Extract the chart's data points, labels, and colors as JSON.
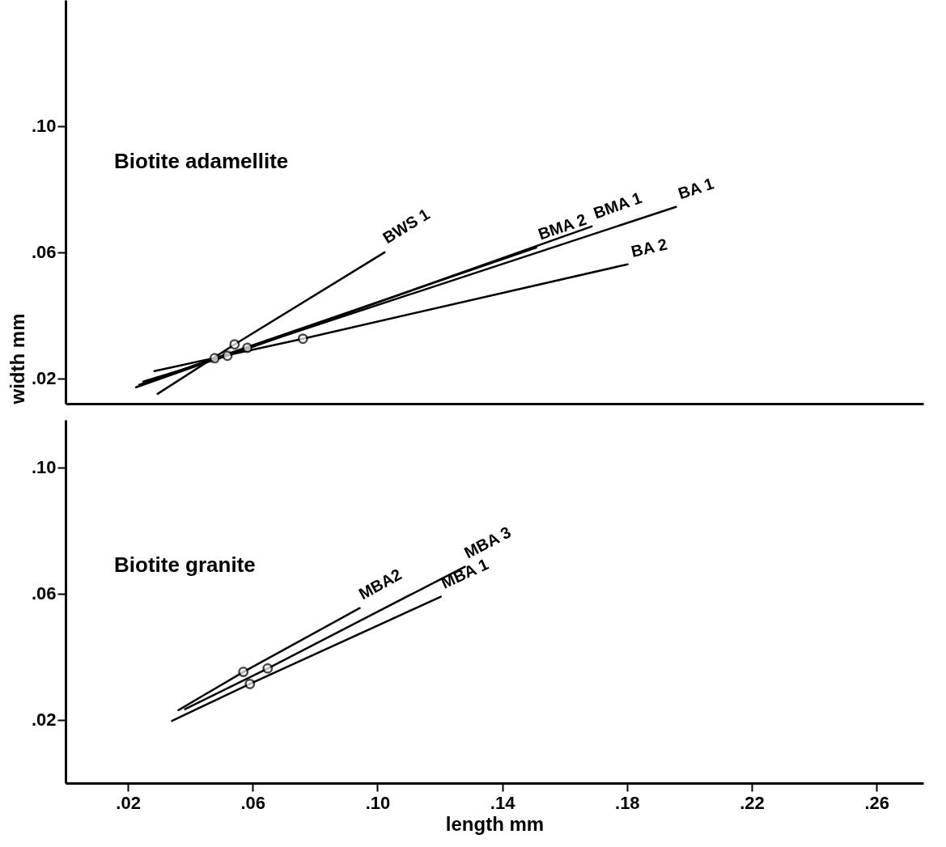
{
  "chart_data": [
    {
      "type": "line",
      "annotations": [
        "Biotite adamellite"
      ],
      "ylabel": "width mm",
      "xlim": [
        0,
        0.275
      ],
      "ylim": [
        0.012,
        0.14
      ],
      "yticks": [
        {
          "value": 0.02,
          "label": ".02"
        },
        {
          "value": 0.06,
          "label": ".06"
        },
        {
          "value": 0.1,
          "label": ".10"
        }
      ],
      "tick_labels": "y",
      "marker": "none",
      "grid": false,
      "series": [
        {
          "name": "BWS 1",
          "color": "#000000",
          "x": [
            0.0295,
            0.0542,
            0.1023
          ],
          "values": [
            0.0151,
            0.0308,
            0.06
          ]
        },
        {
          "name": "BMA 2",
          "color": "#000000",
          "x": [
            0.0236,
            0.0478,
            0.1509
          ],
          "values": [
            0.018,
            0.0264,
            0.0615
          ]
        },
        {
          "name": "BMA 1",
          "color": "#000000",
          "x": [
            0.0249,
            0.0519,
            0.1687
          ],
          "values": [
            0.019,
            0.0272,
            0.0682
          ]
        },
        {
          "name": "BA 1",
          "color": "#000000",
          "x": [
            0.0226,
            0.0583,
            0.1957
          ],
          "values": [
            0.0172,
            0.0297,
            0.0744
          ]
        },
        {
          "name": "BA 2",
          "color": "#000000",
          "x": [
            0.0285,
            0.0761,
            0.1802
          ],
          "values": [
            0.0223,
            0.0326,
            0.0562
          ]
        },
        {
          "type": "scatter",
          "marker": "circle",
          "color": "#000000",
          "x": [
            0.0542,
            0.0478,
            0.0519,
            0.0583,
            0.0761
          ],
          "values": [
            0.0308,
            0.0264,
            0.0272,
            0.0297,
            0.0326
          ]
        }
      ]
    },
    {
      "type": "line",
      "annotations": [
        "Biotite granite"
      ],
      "xlabel": "length mm",
      "xlim": [
        0,
        0.275
      ],
      "xticks": [
        {
          "value": 0.02,
          "label": ".02"
        },
        {
          "value": 0.06,
          "label": ".06"
        },
        {
          "value": 0.1,
          "label": ".10"
        },
        {
          "value": 0.14,
          "label": ".14"
        },
        {
          "value": 0.18,
          "label": ".18"
        },
        {
          "value": 0.22,
          "label": ".22"
        },
        {
          "value": 0.26,
          "label": ".26"
        }
      ],
      "ylim": [
        0,
        0.115
      ],
      "yticks": [
        {
          "value": 0.02,
          "label": ".02"
        },
        {
          "value": 0.06,
          "label": ".06"
        },
        {
          "value": 0.1,
          "label": ".10"
        }
      ],
      "marker": "none",
      "grid": false,
      "series": [
        {
          "name": "MBA2",
          "color": "#000000",
          "x": [
            0.0362,
            0.057,
            0.0943
          ],
          "values": [
            0.0231,
            0.0352,
            0.0554
          ]
        },
        {
          "name": "MBA 3",
          "color": "#000000",
          "x": [
            0.0383,
            0.0648,
            0.128
          ],
          "values": [
            0.0234,
            0.0363,
            0.0685
          ]
        },
        {
          "name": "MBA 1",
          "color": "#000000",
          "x": [
            0.0341,
            0.0591,
            0.1203
          ],
          "values": [
            0.0197,
            0.0314,
            0.059
          ]
        },
        {
          "type": "scatter",
          "marker": "circle",
          "color": "#000000",
          "x": [
            0.057,
            0.0648,
            0.0591
          ],
          "values": [
            0.0352,
            0.0363,
            0.0314
          ]
        }
      ]
    }
  ]
}
